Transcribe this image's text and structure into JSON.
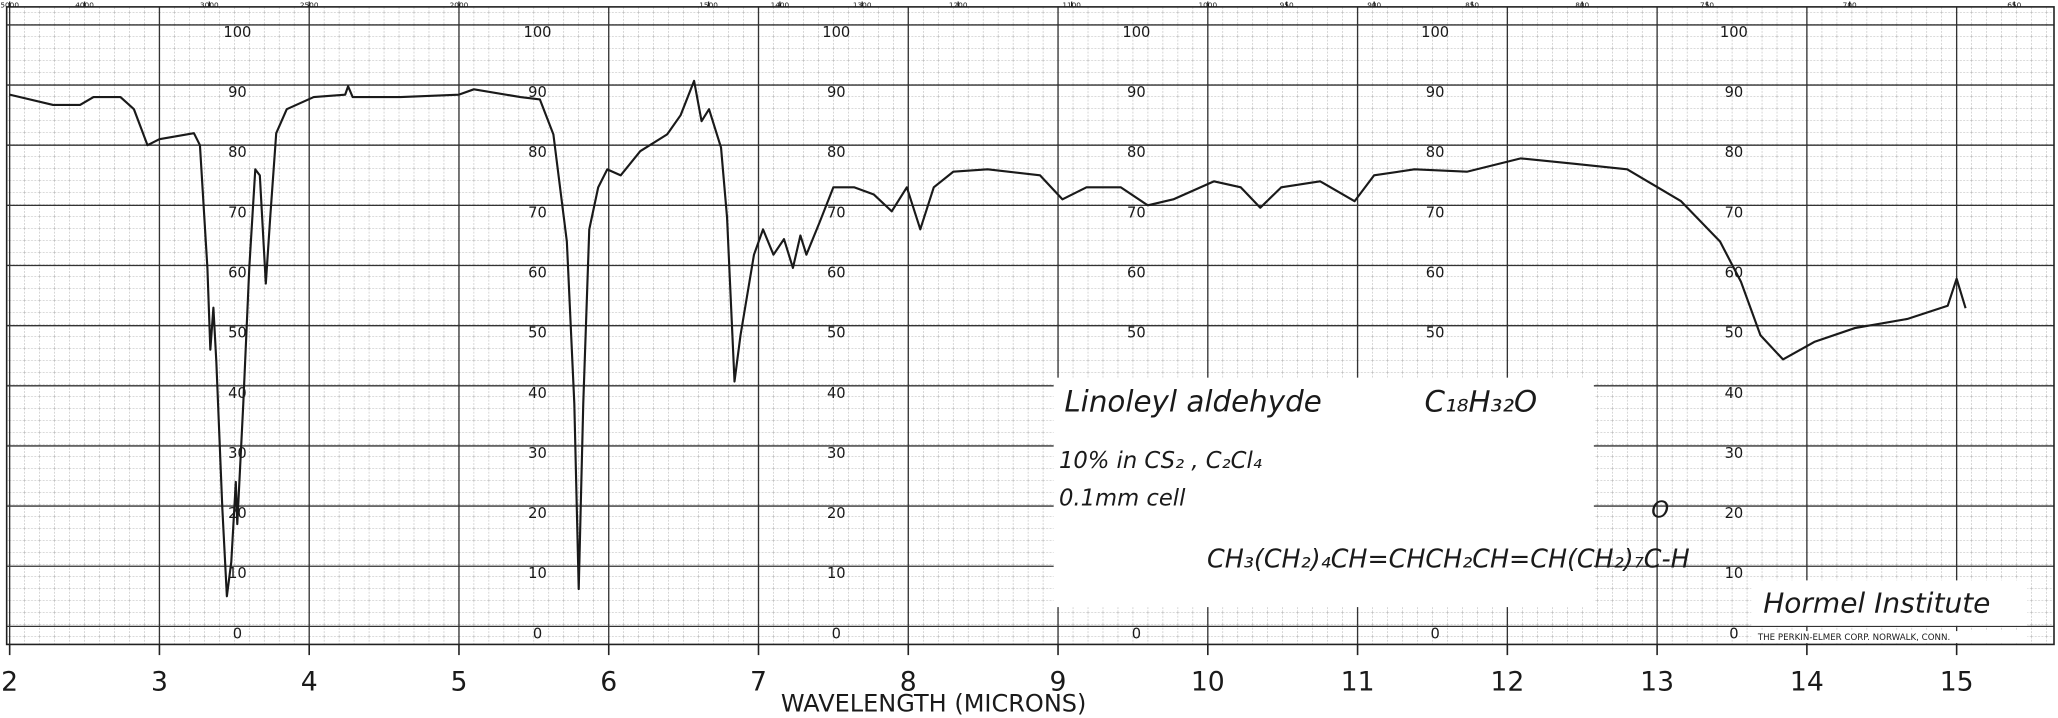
{
  "chart_data": {
    "type": "line",
    "x_label": "WAVELENGTH (MICRONS)",
    "annotations": {
      "name": "Linoleyl aldehyde",
      "formula": "C₁₈H₃₂O",
      "solvent": "10% in CS₂ , C₂Cl₄",
      "cell": "0.1mm cell",
      "structure": "CH₃(CH₂)₄CH=CHCH₂CH=CH(CH₂)₇C-H",
      "structure_o": "O",
      "institute": "Hormel Institute",
      "maker": "THE PERKIN-ELMER CORP. NORWALK, CONN."
    },
    "x": [
      2.0,
      2.29,
      2.47,
      2.56,
      2.74,
      2.83,
      2.92,
      3.0,
      3.23,
      3.27,
      3.32,
      3.34,
      3.36,
      3.38,
      3.42,
      3.45,
      3.48,
      3.51,
      3.52,
      3.56,
      3.6,
      3.64,
      3.67,
      3.71,
      3.74,
      3.78,
      3.85,
      4.03,
      4.24,
      4.26,
      4.29,
      4.61,
      5.0,
      5.1,
      5.41,
      5.54,
      5.63,
      5.72,
      5.77,
      5.8,
      5.83,
      5.87,
      5.93,
      5.99,
      6.08,
      6.21,
      6.39,
      6.48,
      6.57,
      6.62,
      6.67,
      6.75,
      6.79,
      6.84,
      6.88,
      6.97,
      7.03,
      7.1,
      7.17,
      7.23,
      7.28,
      7.32,
      7.41,
      7.5,
      7.64,
      7.77,
      7.89,
      7.99,
      8.08,
      8.17,
      8.3,
      8.53,
      8.88,
      9.03,
      9.19,
      9.42,
      9.6,
      9.77,
      10.04,
      10.22,
      10.35,
      10.49,
      10.75,
      10.98,
      11.11,
      11.38,
      11.73,
      12.09,
      12.45,
      12.8,
      13.16,
      13.42,
      13.56,
      13.69,
      13.84,
      14.05,
      14.32,
      14.67,
      14.94,
      15.0,
      15.06
    ],
    "values": [
      88.4,
      86.7,
      86.7,
      88,
      88,
      86,
      80,
      81,
      82,
      80,
      59.6,
      46,
      53,
      44,
      19.6,
      5,
      10.7,
      24,
      17,
      37,
      59.6,
      76,
      75,
      57,
      68,
      82,
      86,
      88,
      88.4,
      89.8,
      88,
      88,
      88.4,
      89.3,
      88,
      87.6,
      81.8,
      64,
      37,
      6.2,
      37,
      66,
      73,
      76,
      75,
      79,
      81.8,
      85,
      90.7,
      84,
      86,
      79.6,
      68,
      40.7,
      48.4,
      61.8,
      66,
      61.8,
      64.4,
      59.6,
      65,
      61.8,
      67.3,
      73,
      73,
      71.8,
      69,
      73,
      66,
      73,
      75.6,
      76,
      75,
      71,
      73,
      73,
      70,
      71,
      74,
      73,
      69.6,
      73,
      74,
      70.7,
      75,
      76,
      75.6,
      77.8,
      76.9,
      76,
      70.7,
      64,
      57.3,
      48.4,
      44.4,
      47.3,
      49.6,
      51.1,
      53.3,
      57.8,
      52.9
    ],
    "color": "#1a1a1a",
    "xlim": [
      1.98,
      15.65
    ],
    "ylim": [
      -3,
      103
    ],
    "xticks": [
      2,
      3,
      4,
      5,
      6,
      7,
      8,
      9,
      10,
      11,
      12,
      13,
      14,
      15
    ],
    "yticks": [
      0,
      10,
      20,
      30,
      40,
      50,
      60,
      70,
      80,
      90,
      100
    ],
    "top_ticks": [
      5000,
      4000,
      3000,
      2500,
      2000,
      1500,
      1400,
      1300,
      1200,
      1100,
      1000,
      950,
      900,
      850,
      800,
      750,
      700,
      650
    ],
    "grid": true
  }
}
